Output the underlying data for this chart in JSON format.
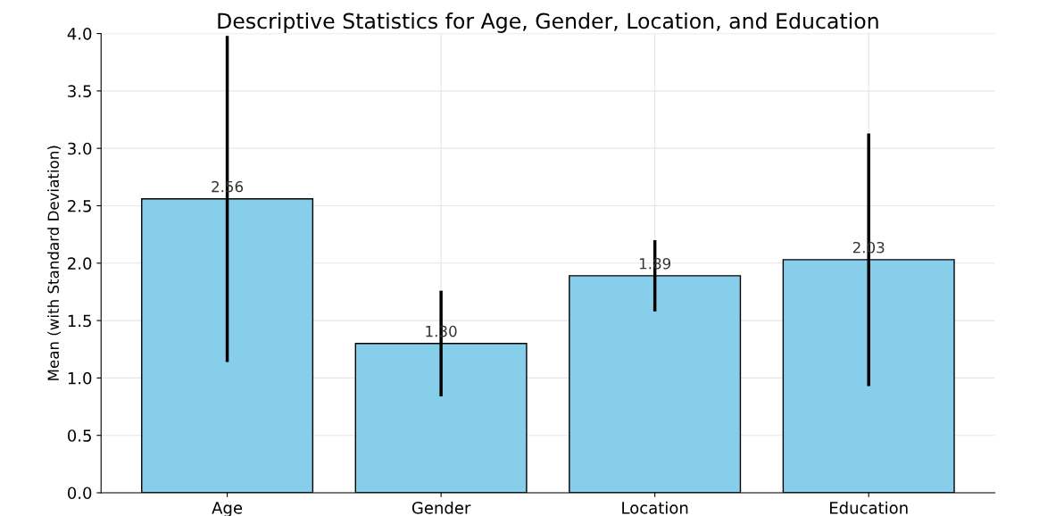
{
  "chart_data": {
    "type": "bar",
    "title": "Descriptive Statistics for Age, Gender, Location, and Education",
    "ylabel": "Mean (with Standard Deviation)",
    "categories": [
      "Age",
      "Gender",
      "Location",
      "Education"
    ],
    "values": [
      2.56,
      1.3,
      1.89,
      2.03
    ],
    "value_labels": [
      "2.56",
      "1.30",
      "1.89",
      "2.03"
    ],
    "errors": [
      1.42,
      0.46,
      0.31,
      1.1
    ],
    "color": "#87ceeb",
    "ylim": [
      0,
      4.0
    ],
    "yticks": [
      {
        "value": 0,
        "label": "0.0"
      },
      {
        "value": 0.5,
        "label": "0.5"
      },
      {
        "value": 1.0,
        "label": "1.0"
      },
      {
        "value": 1.5,
        "label": "1.5"
      },
      {
        "value": 2.0,
        "label": "2.0"
      },
      {
        "value": 2.5,
        "label": "2.5"
      },
      {
        "value": 3.0,
        "label": "3.0"
      },
      {
        "value": 3.5,
        "label": "3.5"
      },
      {
        "value": 4.0,
        "label": "4.0"
      }
    ],
    "grid": true
  }
}
